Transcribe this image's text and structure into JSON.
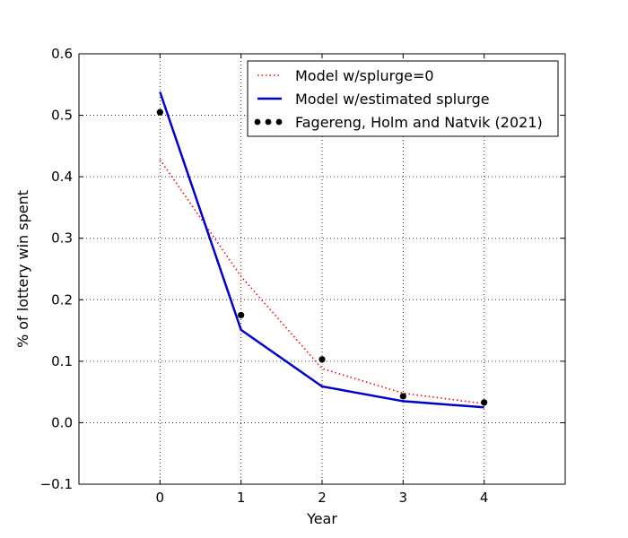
{
  "chart_data": {
    "type": "line",
    "title": "",
    "xlabel": "Year",
    "ylabel": "% of lottery win spent",
    "xlim": [
      -1,
      5
    ],
    "ylim": [
      -0.1,
      0.6
    ],
    "xticks": [
      0,
      1,
      2,
      3,
      4
    ],
    "xtick_labels": [
      "0",
      "1",
      "2",
      "3",
      "4"
    ],
    "yticks": [
      -0.1,
      0.0,
      0.1,
      0.2,
      0.3,
      0.4,
      0.5,
      0.6
    ],
    "ytick_labels": [
      "−0.1",
      "0.0",
      "0.1",
      "0.2",
      "0.3",
      "0.4",
      "0.5",
      "0.6"
    ],
    "grid": true,
    "legend_position": "top-right",
    "series": [
      {
        "name": "Model w/splurge=0",
        "kind": "line",
        "style": "dotted",
        "color": "#ff0000",
        "x": [
          0,
          1,
          2,
          3,
          4
        ],
        "y": [
          0.428,
          0.238,
          0.088,
          0.048,
          0.031
        ]
      },
      {
        "name": "Model w/estimated splurge",
        "kind": "line",
        "style": "solid",
        "color": "#0000cc",
        "x": [
          0,
          1,
          2,
          3,
          4
        ],
        "y": [
          0.538,
          0.151,
          0.059,
          0.035,
          0.025
        ]
      },
      {
        "name": "Fagereng, Holm and Natvik (2021)",
        "kind": "scatter",
        "color": "#000000",
        "x": [
          0,
          1,
          2,
          3,
          4
        ],
        "y": [
          0.505,
          0.175,
          0.103,
          0.043,
          0.033
        ]
      }
    ]
  }
}
